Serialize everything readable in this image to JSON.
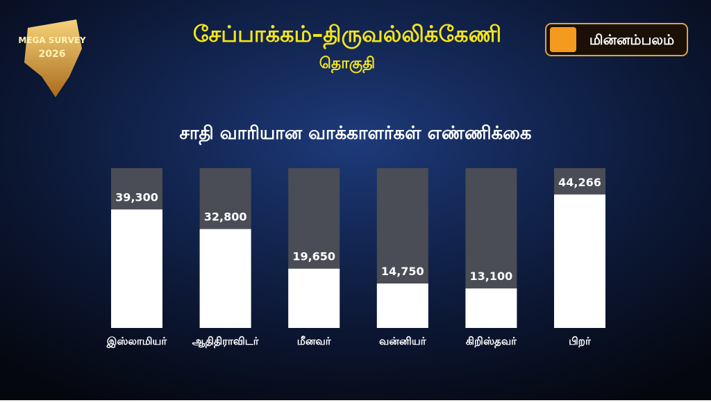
{
  "badge": {
    "line1": "MEGA SURVEY",
    "line2": "2026"
  },
  "logo": "மின்னம்பலம்",
  "chart_data": {
    "type": "bar",
    "title": "சேப்பாக்கம்–திருவல்லிக்கேணி",
    "subtitle": "தொகுதி",
    "chart_title": "சாதி வாரியான வாக்காளர்கள் எண்ணிக்கை",
    "categories": [
      "இஸ்லாமியர்",
      "ஆதிதிராவிடர்",
      "மீனவர்",
      "வன்னியர்",
      "கிறிஸ்தவர்",
      "பிறர்"
    ],
    "values": [
      39300,
      32800,
      19650,
      14750,
      13100,
      44266
    ],
    "value_labels": [
      "39,300",
      "32,800",
      "19,650",
      "14,750",
      "13,100",
      "44,266"
    ],
    "color": "#ffffff",
    "track_color": "#4a4d55",
    "ylim": [
      0,
      53000
    ]
  }
}
